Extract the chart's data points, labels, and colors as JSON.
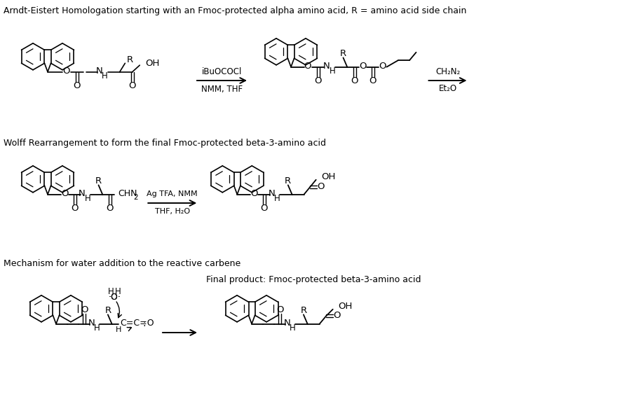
{
  "title1": "Arndt-Eistert Homologation starting with an Fmoc-protected alpha amino acid, R = amino acid side chain",
  "title2": "Wolff Rearrangement to form the final Fmoc-protected beta-3-amino acid",
  "title3": "Mechanism for water addition to the reactive carbene",
  "label_final": "Final product: Fmoc-protected beta-3-amino acid",
  "reagent1a": "iBuOCOCl",
  "reagent1b": "NMM, THF",
  "reagent2a": "CH₂N₂",
  "reagent2b": "Et₂O",
  "reagent3a": "Ag TFA, NMM",
  "reagent3b": "THF, H₂O",
  "bg_color": "#ffffff",
  "text_color": "#000000",
  "fig_width": 8.9,
  "fig_height": 5.87,
  "dpi": 100
}
